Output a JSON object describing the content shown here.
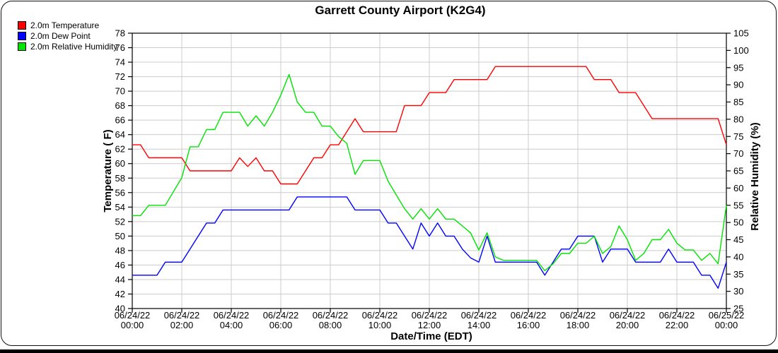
{
  "title": "Garrett County Airport (K2G4)",
  "legend": {
    "items": [
      {
        "label": "2.0m Temperature",
        "color": "#ff0000"
      },
      {
        "label": "2.0m Dew Point",
        "color": "#0000ff"
      },
      {
        "label": "2.0m Relative Humidity",
        "color": "#00e400"
      }
    ]
  },
  "chart_data": {
    "type": "line",
    "title": "Garrett County Airport (K2G4)",
    "x_axis": {
      "title": "Date/Time (EDT)",
      "start": "06/24/22 00:00",
      "end": "06/25/22 00:00",
      "tick_interval_hours": 2,
      "tick_labels": [
        [
          "06/24/22",
          "00:00"
        ],
        [
          "06/24/22",
          "02:00"
        ],
        [
          "06/24/22",
          "04:00"
        ],
        [
          "06/24/22",
          "06:00"
        ],
        [
          "06/24/22",
          "08:00"
        ],
        [
          "06/24/22",
          "10:00"
        ],
        [
          "06/24/22",
          "12:00"
        ],
        [
          "06/24/22",
          "14:00"
        ],
        [
          "06/24/22",
          "16:00"
        ],
        [
          "06/24/22",
          "18:00"
        ],
        [
          "06/24/22",
          "20:00"
        ],
        [
          "06/24/22",
          "22:00"
        ],
        [
          "06/25/22",
          "00:00"
        ]
      ]
    },
    "y_axis_left": {
      "title": "Temperature ( F)",
      "min": 40,
      "max": 78,
      "tick_step": 2
    },
    "y_axis_right": {
      "title": "Relative Humidity (%)",
      "min": 25,
      "max": 105,
      "tick_step": 5
    },
    "grid": {
      "color": "#cccccc",
      "horizontal_step": 2,
      "vertical_step_hours": 2
    },
    "sample_interval_minutes": 20,
    "series": [
      {
        "name": "2.0m Temperature",
        "axis": "left",
        "unit": "F",
        "color": "#ff0000",
        "values": [
          62.6,
          62.6,
          60.8,
          60.8,
          60.8,
          60.8,
          60.8,
          59,
          59,
          59,
          59,
          59,
          59,
          60.8,
          59.6,
          60.8,
          59,
          59,
          57.2,
          57.2,
          57.2,
          59,
          60.8,
          60.8,
          62.6,
          62.6,
          64.4,
          66.2,
          64.4,
          64.4,
          64.4,
          64.4,
          64.4,
          68,
          68,
          68,
          69.8,
          69.8,
          69.8,
          71.6,
          71.6,
          71.6,
          71.6,
          71.6,
          73.4,
          73.4,
          73.4,
          73.4,
          73.4,
          73.4,
          73.4,
          73.4,
          73.4,
          73.4,
          73.4,
          73.4,
          71.6,
          71.6,
          71.6,
          69.8,
          69.8,
          69.8,
          68,
          66.2,
          66.2,
          66.2,
          66.2,
          66.2,
          66.2,
          66.2,
          66.2,
          66.2,
          62.6
        ]
      },
      {
        "name": "2.0m Dew Point",
        "axis": "left",
        "unit": "F",
        "color": "#0000ff",
        "values": [
          44.6,
          44.6,
          44.6,
          44.6,
          46.4,
          46.4,
          46.4,
          48.2,
          50,
          51.8,
          51.8,
          53.6,
          53.6,
          53.6,
          53.6,
          53.6,
          53.6,
          53.6,
          53.6,
          53.6,
          55.4,
          55.4,
          55.4,
          55.4,
          55.4,
          55.4,
          55.4,
          53.6,
          53.6,
          53.6,
          53.6,
          51.8,
          51.8,
          50,
          48.2,
          51.8,
          50,
          51.8,
          50,
          50,
          48.2,
          47,
          46.4,
          50,
          46.4,
          46.4,
          46.4,
          46.4,
          46.4,
          46.4,
          44.6,
          46.4,
          48.2,
          48.2,
          50,
          50,
          50,
          46.4,
          48.2,
          48.2,
          48.2,
          46.4,
          46.4,
          46.4,
          46.4,
          48.2,
          46.4,
          46.4,
          46.4,
          44.6,
          44.6,
          42.8,
          46.4
        ]
      },
      {
        "name": "2.0m Relative Humidity",
        "axis": "right",
        "unit": "%",
        "color": "#00e400",
        "values": [
          52,
          52,
          55,
          55,
          55,
          59,
          63,
          72,
          72,
          77,
          77,
          82,
          82,
          82,
          78,
          81,
          78,
          82,
          87,
          93,
          85,
          82,
          82,
          78,
          78,
          75,
          73,
          64,
          68,
          68,
          68,
          62,
          58,
          54,
          51,
          54,
          51,
          54,
          51,
          51,
          49,
          47,
          42,
          47,
          40,
          39,
          39,
          39,
          39,
          39,
          36,
          38,
          41,
          41,
          44,
          44,
          46,
          41,
          43,
          49,
          45,
          39,
          41,
          45,
          45,
          48,
          44,
          42,
          42,
          39,
          41,
          38,
          55
        ]
      }
    ]
  }
}
